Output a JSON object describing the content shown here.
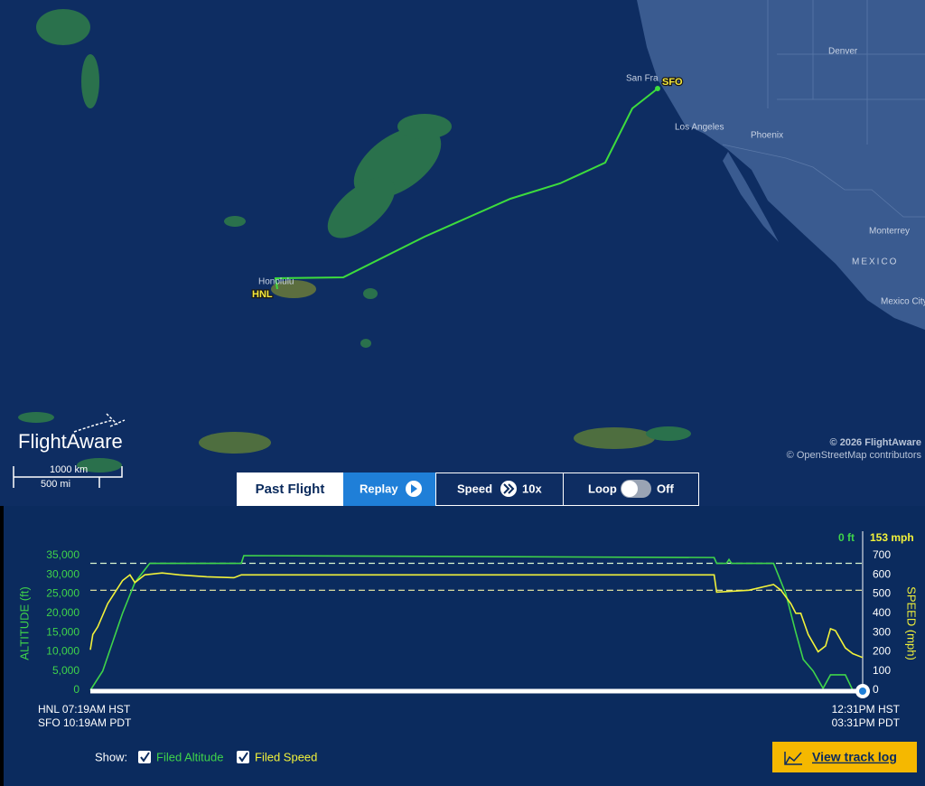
{
  "map": {
    "places": [
      "Denver",
      "San Fra",
      "Los Angeles",
      "Phoenix",
      "Monterrey",
      "MEXICO",
      "Mexico City",
      "Honolulu"
    ],
    "airports": [
      "SFO",
      "HNL"
    ],
    "logo": "FlightAware",
    "scale": [
      "1000 km",
      "500 mi"
    ],
    "attribution": [
      "© 2026 FlightAware",
      "© OpenStreetMap contributors"
    ]
  },
  "controls": {
    "past_flight": "Past Flight",
    "replay": "Replay",
    "speed": "Speed",
    "speed_value": "10x",
    "loop": "Loop",
    "loop_value": "Off"
  },
  "chart_data": {
    "type": "line",
    "ylabel": "ALTITUDE (ft)",
    "y2label": "SPEED (mph)",
    "readouts": [
      "0 ft",
      "153 mph"
    ],
    "start_labels": [
      "HNL 07:19AM HST",
      "SFO 10:19AM PDT"
    ],
    "end_labels": [
      "12:31PM HST",
      "03:31PM PDT"
    ],
    "xlim": [
      0,
      312
    ],
    "ylim": [
      0,
      35000
    ],
    "y2lim": [
      0,
      700
    ],
    "yticks": [
      0,
      {
        "value": 5000,
        "label": "5,000"
      },
      {
        "value": 10000,
        "label": "10,000"
      },
      {
        "value": 15000,
        "label": "15,000"
      },
      {
        "value": 20000,
        "label": "20,000"
      },
      {
        "value": 25000,
        "label": "25,000"
      },
      {
        "value": 30000,
        "label": "30,000"
      },
      {
        "value": 35000,
        "label": "35,000"
      }
    ],
    "y2ticks": [
      0,
      100,
      200,
      300,
      400,
      500,
      600,
      700
    ],
    "series": [
      {
        "color": "#3fd44a",
        "x": [
          0,
          5,
          13,
          18,
          24,
          61,
          62,
          252,
          253,
          257,
          258,
          259,
          276,
          281,
          285,
          288,
          292,
          296,
          299,
          305,
          308,
          312
        ],
        "values": [
          0,
          5000,
          20000,
          28000,
          33000,
          33000,
          35000,
          34500,
          33000,
          33000,
          34000,
          33000,
          33000,
          25000,
          15000,
          8000,
          5000,
          500,
          4000,
          4000,
          0,
          0
        ]
      },
      {
        "color": "#f2f23a",
        "axis": "y2",
        "x": [
          0,
          1,
          3,
          7,
          13,
          16,
          18,
          22,
          29,
          36,
          47,
          58,
          61,
          252,
          253,
          266,
          276,
          279,
          283,
          285,
          287,
          290,
          294,
          297,
          299,
          301,
          305,
          308,
          312
        ],
        "values": [
          210,
          290,
          330,
          450,
          570,
          600,
          560,
          600,
          610,
          600,
          590,
          585,
          600,
          600,
          510,
          520,
          550,
          520,
          450,
          400,
          400,
          290,
          200,
          230,
          320,
          310,
          220,
          190,
          170
        ]
      }
    ],
    "reference_lines": [
      {
        "name": "Filed Altitude",
        "value": 33000,
        "color": "#d9f7d0"
      },
      {
        "name": "Filed Speed",
        "value": 520,
        "axis": "y2",
        "color": "#f4f2a8"
      }
    ]
  },
  "footer": {
    "show": "Show:",
    "button": "View track log"
  }
}
